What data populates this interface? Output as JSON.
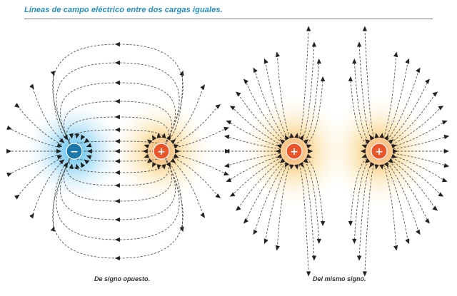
{
  "header": {
    "title": "Líneas de campo eléctrico entre dos cargas iguales."
  },
  "panels": [
    {
      "id": "opposite",
      "caption": "De signo opuesto.",
      "charges": [
        {
          "sign": "−",
          "color": "#1d77a9",
          "glow": "#3fb4ea"
        },
        {
          "sign": "+",
          "color": "#e9552b",
          "glow": "#f7b15a"
        }
      ]
    },
    {
      "id": "same",
      "caption": "Del mismo signo.",
      "charges": [
        {
          "sign": "+",
          "color": "#e9552b",
          "glow": "#f7b15a"
        },
        {
          "sign": "+",
          "color": "#e9552b",
          "glow": "#f7b15a"
        }
      ]
    }
  ],
  "colors": {
    "title": "#1f8fc2",
    "field_line": "#555555",
    "arrow": "#222222",
    "negative_charge": "#1d77a9",
    "positive_charge": "#e9552b"
  },
  "icons": {
    "negative_charge": "minus-sign-icon",
    "positive_charge": "plus-sign-icon",
    "field_direction": "arrowhead-icon"
  }
}
